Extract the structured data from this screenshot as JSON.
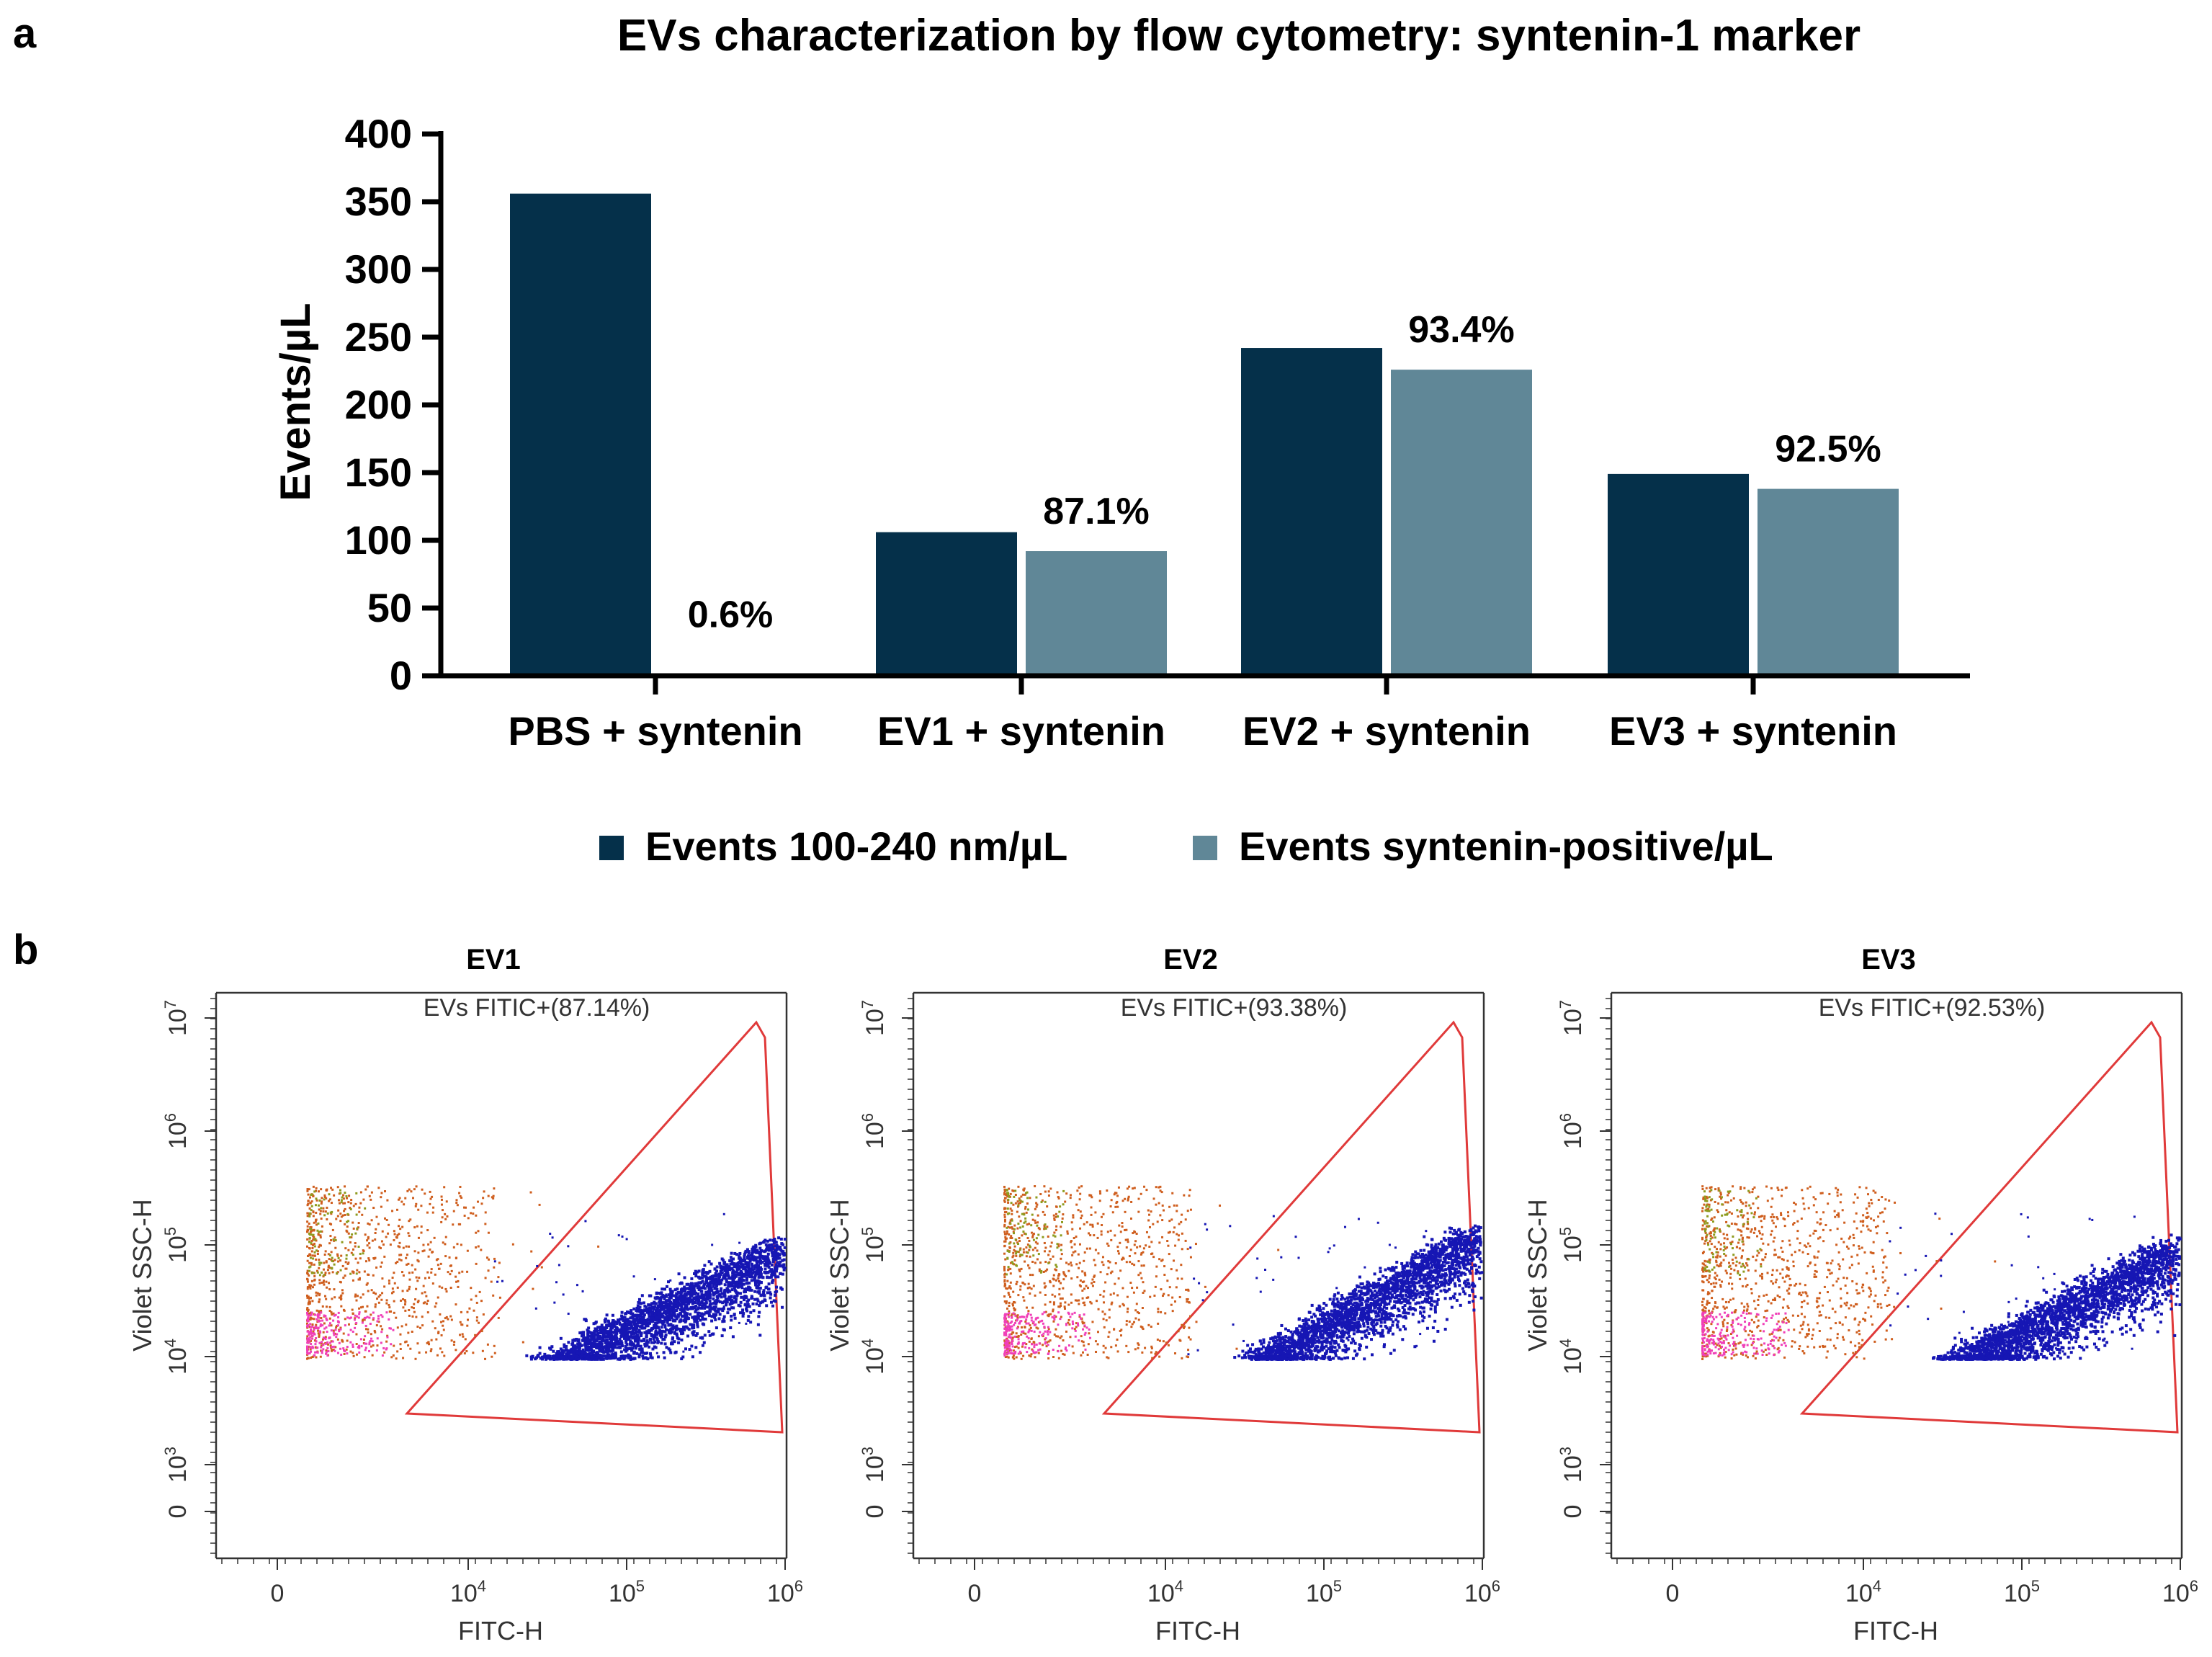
{
  "panel_a_label": "a",
  "panel_b_label": "b",
  "colors": {
    "series1": "#05304a",
    "series2": "#608797",
    "gate": "#e03a3a",
    "dots_main": "#1616b4",
    "dots_orange": "#cf5e1e",
    "dots_pink": "#f03fb8",
    "dots_green": "#8e9b1e",
    "axis": "#000000",
    "flow_axis": "#333333"
  },
  "chart_data": [
    {
      "type": "bar",
      "title": "EVs characterization by flow cytometry: syntenin-1 marker",
      "xlabel": "",
      "ylabel": "Events/µL",
      "ylim": [
        0,
        400
      ],
      "yticks": [
        "0",
        "50",
        "100",
        "150",
        "200",
        "250",
        "300",
        "350",
        "400"
      ],
      "categories": [
        "PBS + syntenin",
        "EV1 + syntenin",
        "EV2 + syntenin",
        "EV3 + syntenin"
      ],
      "series": [
        {
          "name": "Events 100-240 nm/µL",
          "values": [
            356,
            106,
            242,
            149
          ]
        },
        {
          "name": "Events syntenin-positive/µL",
          "values": [
            0,
            92,
            226,
            138
          ]
        }
      ],
      "annotations": [
        "0.6%",
        "87.1%",
        "93.4%",
        "92.5%"
      ],
      "legend_position": "bottom"
    },
    {
      "type": "scatter",
      "panels": [
        {
          "title": "EV1",
          "gate_label": "EVs FITIC+(87.14%)",
          "population_x_range": [
            35000,
            700000
          ],
          "population_y_range": [
            10000,
            90000
          ]
        },
        {
          "title": "EV2",
          "gate_label": "EVs FITIC+(93.38%)",
          "population_x_range": [
            40000,
            1000000
          ],
          "population_y_range": [
            10000,
            120000
          ]
        },
        {
          "title": "EV3",
          "gate_label": "EVs FITIC+(92.53%)",
          "population_x_range": [
            45000,
            800000
          ],
          "population_y_range": [
            10000,
            90000
          ]
        }
      ],
      "xlabel": "FITC-H",
      "ylabel": "Violet SSC-H",
      "x_scale": "log",
      "y_scale": "log",
      "xticks": [
        {
          "base": "0",
          "exp": ""
        },
        {
          "base": "10",
          "exp": "4"
        },
        {
          "base": "10",
          "exp": "5"
        },
        {
          "base": "10",
          "exp": "6"
        }
      ],
      "yticks": [
        {
          "base": "0",
          "exp": ""
        },
        {
          "base": "10",
          "exp": "3"
        },
        {
          "base": "10",
          "exp": "4"
        },
        {
          "base": "10",
          "exp": "5"
        },
        {
          "base": "10",
          "exp": "6"
        },
        {
          "base": "10",
          "exp": "7"
        }
      ]
    }
  ]
}
